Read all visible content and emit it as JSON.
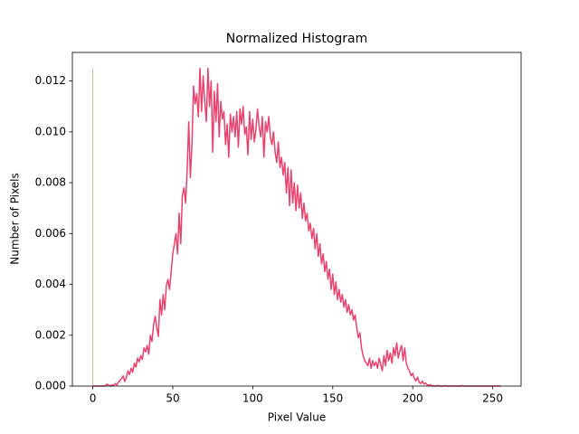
{
  "chart_data": {
    "type": "line",
    "title": "Normalized Histogram",
    "xlabel": "Pixel Value",
    "ylabel": "Number of Pixels",
    "x": [
      0,
      1,
      2,
      3,
      4,
      5,
      6,
      7,
      8,
      9,
      10,
      11,
      12,
      13,
      14,
      15,
      16,
      17,
      18,
      19,
      20,
      21,
      22,
      23,
      24,
      25,
      26,
      27,
      28,
      29,
      30,
      31,
      32,
      33,
      34,
      35,
      36,
      37,
      38,
      39,
      40,
      41,
      42,
      43,
      44,
      45,
      46,
      47,
      48,
      49,
      50,
      51,
      52,
      53,
      54,
      55,
      56,
      57,
      58,
      59,
      60,
      61,
      62,
      63,
      64,
      65,
      66,
      67,
      68,
      69,
      70,
      71,
      72,
      73,
      74,
      75,
      76,
      77,
      78,
      79,
      80,
      81,
      82,
      83,
      84,
      85,
      86,
      87,
      88,
      89,
      90,
      91,
      92,
      93,
      94,
      95,
      96,
      97,
      98,
      99,
      100,
      101,
      102,
      103,
      104,
      105,
      106,
      107,
      108,
      109,
      110,
      111,
      112,
      113,
      114,
      115,
      116,
      117,
      118,
      119,
      120,
      121,
      122,
      123,
      124,
      125,
      126,
      127,
      128,
      129,
      130,
      131,
      132,
      133,
      134,
      135,
      136,
      137,
      138,
      139,
      140,
      141,
      142,
      143,
      144,
      145,
      146,
      147,
      148,
      149,
      150,
      151,
      152,
      153,
      154,
      155,
      156,
      157,
      158,
      159,
      160,
      161,
      162,
      163,
      164,
      165,
      166,
      167,
      168,
      169,
      170,
      171,
      172,
      173,
      174,
      175,
      176,
      177,
      178,
      179,
      180,
      181,
      182,
      183,
      184,
      185,
      186,
      187,
      188,
      189,
      190,
      191,
      192,
      193,
      194,
      195,
      196,
      197,
      198,
      199,
      200,
      201,
      202,
      203,
      204,
      205,
      206,
      207,
      208,
      209,
      210,
      211,
      212,
      213,
      214,
      215,
      216,
      217,
      218,
      219,
      220,
      221,
      222,
      223,
      224,
      225,
      226,
      227,
      228,
      229,
      230,
      231,
      232,
      233,
      234,
      235,
      236,
      237,
      238,
      239,
      240,
      241,
      242,
      243,
      244,
      245,
      246,
      247,
      248,
      249,
      250,
      251,
      252,
      253,
      254,
      255
    ],
    "series": [
      {
        "color": "#e8436e",
        "values": [
          0,
          0,
          0,
          0,
          0,
          0,
          0,
          0,
          2e-05,
          8e-05,
          3e-05,
          0,
          5e-05,
          2e-05,
          0.0001,
          4e-05,
          0.00015,
          0.00022,
          0.0003,
          0.0004,
          0.00018,
          0.00035,
          0.0006,
          0.00045,
          0.0007,
          0.00055,
          0.0009,
          0.00075,
          0.0011,
          0.00095,
          0.0012,
          0.00105,
          0.0015,
          0.00135,
          0.0016,
          0.00125,
          0.002,
          0.00175,
          0.0024,
          0.00275,
          0.0023,
          0.00195,
          0.0034,
          0.0028,
          0.0036,
          0.003,
          0.00395,
          0.0042,
          0.0038,
          0.0045,
          0.0052,
          0.0056,
          0.006,
          0.0052,
          0.0068,
          0.0056,
          0.0075,
          0.0078,
          0.0072,
          0.0085,
          0.0104,
          0.0082,
          0.0095,
          0.0118,
          0.0111,
          0.0115,
          0.0106,
          0.0125,
          0.0108,
          0.0122,
          0.0112,
          0.0104,
          0.0125,
          0.011,
          0.012,
          0.0092,
          0.0116,
          0.0104,
          0.0119,
          0.0098,
          0.0112,
          0.0105,
          0.0108,
          0.0095,
          0.0103,
          0.009,
          0.0107,
          0.01,
          0.0106,
          0.0098,
          0.0108,
          0.0094,
          0.0109,
          0.0103,
          0.011,
          0.0099,
          0.0102,
          0.0091,
          0.0108,
          0.0097,
          0.0105,
          0.0096,
          0.0101,
          0.0109,
          0.0102,
          0.0098,
          0.0106,
          0.009,
          0.0104,
          0.01,
          0.0106,
          0.0098,
          0.0095,
          0.01,
          0.0092,
          0.0088,
          0.0096,
          0.0086,
          0.009,
          0.0083,
          0.0088,
          0.0076,
          0.0086,
          0.0071,
          0.0085,
          0.0072,
          0.008,
          0.0069,
          0.0079,
          0.007,
          0.0076,
          0.0066,
          0.0072,
          0.0065,
          0.0068,
          0.0061,
          0.0064,
          0.0058,
          0.0062,
          0.0054,
          0.006,
          0.0051,
          0.0056,
          0.0048,
          0.0052,
          0.0045,
          0.0049,
          0.0042,
          0.0046,
          0.0038,
          0.0044,
          0.0036,
          0.0041,
          0.0034,
          0.0038,
          0.0033,
          0.0036,
          0.0031,
          0.0034,
          0.0029,
          0.0032,
          0.0028,
          0.003,
          0.0026,
          0.0028,
          0.0023,
          0.0019,
          0.0021,
          0.0015,
          0.0012,
          0.001,
          0.0009,
          0.0008,
          0.0011,
          0.0007,
          0.001,
          0.0008,
          0.00095,
          0.0007,
          0.0011,
          0.00085,
          0.0006,
          0.0012,
          0.0008,
          0.0014,
          0.001,
          0.0013,
          0.0009,
          0.0015,
          0.0012,
          0.0017,
          0.0011,
          0.0014,
          0.0016,
          0.001,
          0.0015,
          0.0009,
          0.0007,
          0.0006,
          0.0004,
          0.0005,
          0.0003,
          0.0002,
          0.00035,
          0.00015,
          0.0001,
          0.0002,
          8e-05,
          0.00012,
          5e-05,
          3e-05,
          6e-05,
          0,
          2e-05,
          0,
          0,
          3e-05,
          0,
          0,
          0,
          2e-05,
          0,
          0,
          0,
          0,
          0,
          1e-05,
          0,
          0,
          0,
          0,
          2e-05,
          0,
          0,
          0,
          0,
          0,
          0,
          0,
          0,
          0,
          0,
          0,
          0,
          0,
          0,
          0,
          0,
          0,
          0,
          0,
          0,
          0,
          0,
          0,
          0
        ]
      },
      {
        "color": "#b8ad7c",
        "x": [
          0,
          0
        ],
        "values": [
          0,
          0.0125
        ]
      }
    ],
    "xlim": [
      -12.75,
      267.75
    ],
    "xticks": [
      0,
      50,
      100,
      150,
      200,
      250
    ],
    "ylim": [
      0,
      0.013125
    ],
    "yticks": [
      {
        "value": 0,
        "label": "0.000"
      },
      0.002,
      0.004,
      0.006,
      0.008,
      {
        "value": 0.01,
        "label": "0.010"
      },
      0.012
    ]
  }
}
